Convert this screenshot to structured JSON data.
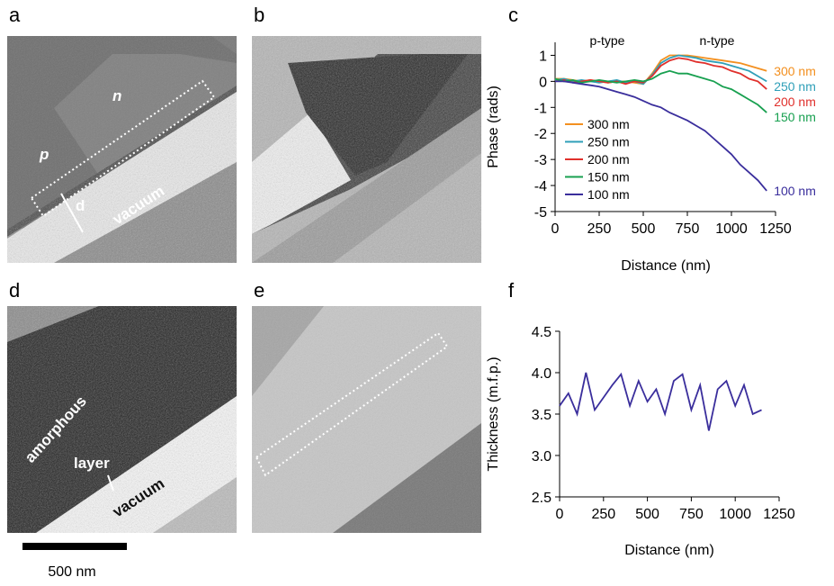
{
  "panel_labels": [
    "a",
    "b",
    "c",
    "d",
    "e",
    "f"
  ],
  "image_annotations": {
    "a": [
      "n",
      "p",
      "d",
      "vacuum"
    ],
    "d": [
      "amorphous",
      "layer",
      "vacuum"
    ]
  },
  "scale_bar": "500 nm",
  "chart_data": [
    {
      "type": "line",
      "xlabel": "Distance (nm)",
      "ylabel": "Phase (rads)",
      "annotations": [
        "p-type",
        "n-type"
      ],
      "xlim": [
        0,
        1250
      ],
      "xticks": [
        0,
        250,
        500,
        750,
        1000,
        1250
      ],
      "ylim": [
        -5,
        1.5
      ],
      "yticks": [
        -5,
        -4,
        -3,
        -2,
        -1,
        0,
        1
      ],
      "legend": "lower left",
      "x": [
        0,
        50,
        100,
        150,
        200,
        250,
        300,
        350,
        400,
        450,
        500,
        550,
        600,
        650,
        700,
        750,
        800,
        850,
        900,
        950,
        1000,
        1050,
        1100,
        1150,
        1200
      ],
      "series": [
        {
          "name": "300 nm",
          "color": "#f39020",
          "values": [
            0.1,
            0.1,
            0.05,
            0,
            0.05,
            0,
            -0.05,
            0,
            0,
            -0.05,
            -0.1,
            0.3,
            0.8,
            1.0,
            1.0,
            1.0,
            0.95,
            0.9,
            0.85,
            0.8,
            0.75,
            0.7,
            0.6,
            0.5,
            0.4
          ]
        },
        {
          "name": "250 nm",
          "color": "#2f9fb8",
          "values": [
            0.05,
            0.1,
            0,
            0.05,
            0,
            -0.05,
            0,
            0.05,
            -0.05,
            0,
            -0.1,
            0.25,
            0.7,
            0.9,
            1.0,
            0.95,
            0.9,
            0.8,
            0.75,
            0.7,
            0.6,
            0.5,
            0.4,
            0.2,
            0
          ]
        },
        {
          "name": "200 nm",
          "color": "#e0302c",
          "values": [
            0,
            0.05,
            -0.05,
            0,
            0.05,
            0,
            -0.05,
            0,
            -0.1,
            0,
            -0.05,
            0.2,
            0.6,
            0.8,
            0.9,
            0.85,
            0.75,
            0.7,
            0.6,
            0.55,
            0.4,
            0.3,
            0.1,
            0,
            -0.3
          ]
        },
        {
          "name": "150 nm",
          "color": "#18a050",
          "values": [
            0.1,
            0,
            0.05,
            -0.05,
            0,
            0.05,
            0,
            -0.05,
            0,
            0.05,
            0,
            0.1,
            0.3,
            0.4,
            0.3,
            0.3,
            0.2,
            0.1,
            0,
            -0.2,
            -0.3,
            -0.5,
            -0.7,
            -0.9,
            -1.2
          ]
        },
        {
          "name": "100 nm",
          "color": "#3a2e9c",
          "values": [
            0,
            0,
            -0.05,
            -0.1,
            -0.15,
            -0.2,
            -0.3,
            -0.4,
            -0.5,
            -0.6,
            -0.75,
            -0.9,
            -1.0,
            -1.2,
            -1.35,
            -1.5,
            -1.7,
            -1.9,
            -2.2,
            -2.5,
            -2.8,
            -3.2,
            -3.5,
            -3.8,
            -4.2
          ]
        }
      ]
    },
    {
      "type": "line",
      "xlabel": "Distance (nm)",
      "ylabel": "Thickness (m.f.p.)",
      "xlim": [
        0,
        1250
      ],
      "xticks": [
        0,
        250,
        500,
        750,
        1000,
        1250
      ],
      "ylim": [
        2.5,
        4.5
      ],
      "yticks": [
        2.5,
        {
          "value": 3,
          "label": "3.0"
        },
        3.5,
        {
          "value": 4,
          "label": "4.0"
        },
        4.5
      ],
      "x": [
        0,
        50,
        100,
        150,
        200,
        250,
        300,
        350,
        400,
        450,
        500,
        550,
        600,
        650,
        700,
        750,
        800,
        850,
        900,
        950,
        1000,
        1050,
        1100,
        1150
      ],
      "series": [
        {
          "name": null,
          "color": "#3a2e9c",
          "values": [
            3.6,
            3.75,
            3.5,
            4.0,
            3.55,
            3.7,
            3.85,
            3.98,
            3.6,
            3.9,
            3.65,
            3.8,
            3.5,
            3.9,
            3.98,
            3.55,
            3.85,
            3.3,
            3.8,
            3.9,
            3.6,
            3.85,
            3.5,
            3.55
          ]
        }
      ]
    }
  ]
}
